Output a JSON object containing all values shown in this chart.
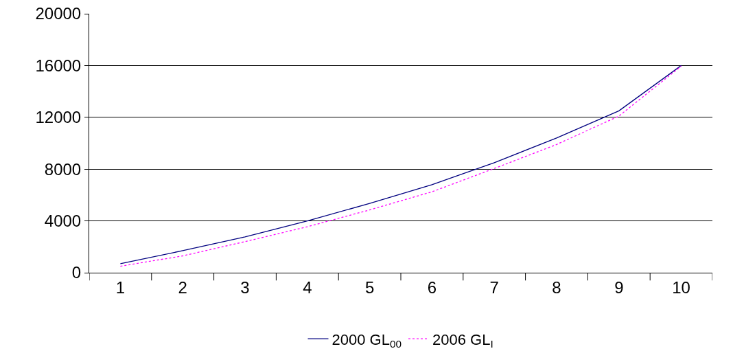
{
  "chart_data": {
    "type": "line",
    "categories": [
      "1",
      "2",
      "3",
      "4",
      "5",
      "6",
      "7",
      "8",
      "9",
      "10"
    ],
    "series": [
      {
        "name": "2000 GL$_{00}$",
        "color": "#000080",
        "line_style": "solid",
        "values": [
          700,
          1700,
          2770,
          4000,
          5350,
          6800,
          8500,
          10400,
          12500,
          16000
        ]
      },
      {
        "name": "2006 GL$_{I}$",
        "color": "#ff00ff",
        "line_style": "dotted",
        "values": [
          500,
          1300,
          2400,
          3550,
          4850,
          6250,
          8050,
          9900,
          12100,
          15950
        ]
      }
    ],
    "ylim": [
      0,
      20000
    ],
    "yticks": [
      0,
      4000,
      8000,
      12000,
      16000,
      20000
    ],
    "grid": "y",
    "legend": "bottom",
    "marker": "none"
  }
}
